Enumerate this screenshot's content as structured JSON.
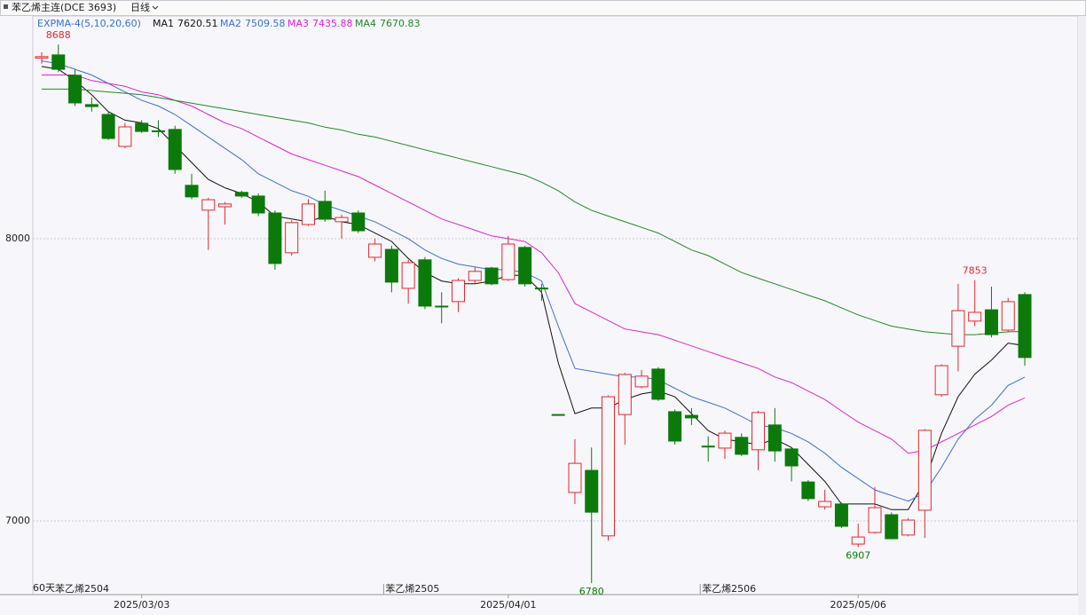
{
  "chart_data": {
    "type": "candlestick",
    "title": "苯乙烯主连(DCE 3693)",
    "period": "日线",
    "indicator": "EXPMA-4(5,10,20,60)",
    "range_label": "60天",
    "categories": [
      null,
      null,
      null,
      null,
      null,
      null,
      "2025/03/03",
      null,
      null,
      null,
      null,
      null,
      null,
      null,
      null,
      null,
      null,
      null,
      null,
      null,
      null,
      null,
      null,
      null,
      null,
      null,
      null,
      null,
      "2025/04/01",
      null,
      null,
      null,
      null,
      null,
      null,
      null,
      null,
      null,
      null,
      null,
      null,
      null,
      null,
      null,
      null,
      null,
      null,
      null,
      null,
      "2025/05/06",
      null,
      null,
      null,
      null,
      null,
      null,
      null,
      null,
      null,
      null
    ],
    "contracts": [
      "苯乙烯2504",
      null,
      null,
      null,
      null,
      null,
      null,
      null,
      null,
      null,
      null,
      null,
      null,
      null,
      null,
      null,
      null,
      null,
      null,
      null,
      null,
      "苯乙烯2505",
      null,
      null,
      null,
      null,
      null,
      null,
      null,
      null,
      null,
      null,
      null,
      null,
      null,
      null,
      null,
      null,
      null,
      null,
      "苯乙烯2506",
      null,
      null,
      null,
      null,
      null,
      null,
      null,
      null,
      null,
      null,
      null,
      null,
      null,
      null,
      null,
      null,
      null,
      null,
      null
    ],
    "open": [
      8640,
      8651,
      8579,
      8475,
      8440,
      8327,
      8409,
      8382,
      8387,
      8189,
      8101,
      8113,
      8164,
      8151,
      8091,
      7950,
      8050,
      8132,
      8060,
      8091,
      7934,
      7962,
      7824,
      7925,
      7761,
      7777,
      7852,
      7896,
      7855,
      7969,
      7825,
      7377,
      7101,
      7179,
      6947,
      7377,
      7475,
      7538,
      7387,
      7374,
      7265,
      7258,
      7296,
      7252,
      7340,
      7255,
      7138,
      7050,
      7060,
      6918,
      6959,
      7022,
      6950,
      7038,
      7447,
      7619,
      7708,
      7748,
      7676,
      7802
    ],
    "high": [
      8660,
      8688,
      8600,
      8500,
      8450,
      8410,
      8420,
      8420,
      8400,
      8230,
      8145,
      8130,
      8170,
      8160,
      8100,
      8065,
      8140,
      8170,
      8085,
      8100,
      8000,
      7975,
      7925,
      7935,
      7810,
      7860,
      7900,
      7900,
      8010,
      7975,
      7840,
      7378,
      7290,
      7260,
      7445,
      7525,
      7535,
      7545,
      7395,
      7400,
      7300,
      7320,
      7310,
      7390,
      7400,
      7260,
      7145,
      7110,
      7065,
      6990,
      7120,
      7030,
      7010,
      7325,
      7555,
      7840,
      7853,
      7830,
      7790,
      7810
    ],
    "low": [
      8620,
      8590,
      8470,
      8450,
      8350,
      8320,
      8375,
      8360,
      8230,
      8140,
      7960,
      8050,
      8145,
      8080,
      7890,
      7940,
      8045,
      8060,
      8000,
      8020,
      7920,
      7810,
      7770,
      7750,
      7700,
      7740,
      7840,
      7835,
      7850,
      7830,
      7780,
      7375,
      7060,
      6780,
      6930,
      7270,
      7470,
      7425,
      7270,
      7340,
      7210,
      7220,
      7230,
      7180,
      7210,
      7140,
      7070,
      7040,
      6975,
      6907,
      6955,
      6935,
      6945,
      6940,
      7440,
      7530,
      7690,
      7650,
      7670,
      7550
    ],
    "close": [
      8645,
      8600,
      8481,
      8468,
      8355,
      8396,
      8380,
      8380,
      8245,
      8148,
      8138,
      8123,
      8151,
      8091,
      7912,
      8057,
      8123,
      8069,
      8075,
      8028,
      7981,
      7846,
      7915,
      7761,
      7760,
      7852,
      7884,
      7840,
      7981,
      7840,
      7824,
      7376,
      7204,
      7031,
      7440,
      7519,
      7513,
      7431,
      7283,
      7365,
      7264,
      7311,
      7236,
      7384,
      7248,
      7195,
      7079,
      7069,
      6981,
      6943,
      7047,
      6937,
      7003,
      7321,
      7550,
      7745,
      7739,
      7660,
      7777,
      7579
    ],
    "series": [
      {
        "name": "MA1",
        "color": "#111111",
        "values": [
          8610,
          8600,
          8560,
          8510,
          8450,
          8420,
          8410,
          8390,
          8330,
          8270,
          8210,
          8180,
          8160,
          8130,
          8080,
          8070,
          8060,
          8080,
          8060,
          8050,
          8020,
          7990,
          7930,
          7880,
          7850,
          7840,
          7840,
          7850,
          7870,
          7870,
          7810,
          7560,
          7380,
          7400,
          7400,
          7430,
          7450,
          7460,
          7440,
          7380,
          7320,
          7290,
          7280,
          7270,
          7290,
          7260,
          7200,
          7140,
          7060,
          7060,
          7060,
          7040,
          7040,
          7140,
          7310,
          7440,
          7520,
          7570,
          7630,
          7620.51
        ]
      },
      {
        "name": "MA2",
        "color": "#3a6fd8",
        "values": [
          8630,
          8620,
          8600,
          8580,
          8550,
          8520,
          8490,
          8470,
          8440,
          8400,
          8360,
          8320,
          8280,
          8230,
          8200,
          8170,
          8150,
          8120,
          8100,
          8080,
          8060,
          8030,
          8000,
          7960,
          7930,
          7910,
          7900,
          7890,
          7890,
          7880,
          7850,
          7690,
          7540,
          7530,
          7520,
          7510,
          7510,
          7500,
          7470,
          7440,
          7420,
          7400,
          7370,
          7340,
          7330,
          7310,
          7280,
          7240,
          7190,
          7150,
          7110,
          7090,
          7070,
          7100,
          7190,
          7290,
          7360,
          7410,
          7480,
          7509.58
        ]
      },
      {
        "name": "MA3",
        "color": "#e020d8",
        "values": [
          8580,
          8580,
          8580,
          8560,
          8550,
          8540,
          8520,
          8510,
          8490,
          8470,
          8440,
          8410,
          8390,
          8360,
          8330,
          8300,
          8280,
          8260,
          8240,
          8220,
          8190,
          8160,
          8130,
          8100,
          8070,
          8050,
          8030,
          8010,
          8000,
          7990,
          7950,
          7880,
          7770,
          7740,
          7710,
          7680,
          7670,
          7660,
          7640,
          7620,
          7600,
          7580,
          7560,
          7540,
          7510,
          7490,
          7460,
          7430,
          7390,
          7350,
          7320,
          7290,
          7240,
          7250,
          7280,
          7310,
          7340,
          7370,
          7410,
          7435.88
        ]
      },
      {
        "name": "MA4",
        "color": "#1f8a1f",
        "values": [
          8530,
          8530,
          8530,
          8525,
          8520,
          8515,
          8510,
          8500,
          8490,
          8480,
          8470,
          8460,
          8450,
          8440,
          8430,
          8420,
          8410,
          8395,
          8385,
          8370,
          8360,
          8345,
          8330,
          8315,
          8300,
          8285,
          8270,
          8255,
          8240,
          8225,
          8200,
          8170,
          8130,
          8100,
          8080,
          8060,
          8040,
          8020,
          7990,
          7960,
          7940,
          7910,
          7880,
          7860,
          7840,
          7820,
          7800,
          7780,
          7755,
          7730,
          7710,
          7690,
          7680,
          7670,
          7665,
          7660,
          7660,
          7665,
          7670,
          7670.83
        ]
      }
    ],
    "up_color": "#e8262b",
    "down_color": "#0b7a0b",
    "ylim": [
      6739,
      8789
    ],
    "yticks": [
      7000,
      8000
    ],
    "grid": true
  }
}
